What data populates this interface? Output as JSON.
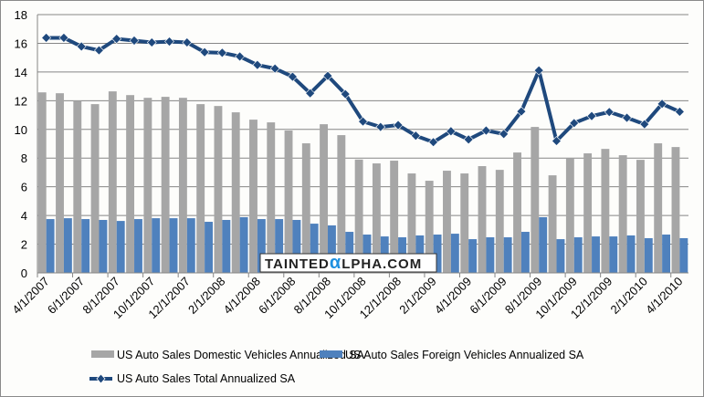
{
  "chart_data": {
    "type": "bar",
    "title": "",
    "xlabel": "",
    "ylabel": "",
    "ylim": [
      0,
      18
    ],
    "yticks": [
      0,
      2,
      4,
      6,
      8,
      10,
      12,
      14,
      16,
      18
    ],
    "grid": true,
    "legend_position": "bottom",
    "categories": [
      "4/1/2007",
      "5/1/2007",
      "6/1/2007",
      "7/1/2007",
      "8/1/2007",
      "9/1/2007",
      "10/1/2007",
      "11/1/2007",
      "12/1/2007",
      "1/1/2008",
      "2/1/2008",
      "3/1/2008",
      "4/1/2008",
      "5/1/2008",
      "6/1/2008",
      "7/1/2008",
      "8/1/2008",
      "9/1/2008",
      "10/1/2008",
      "11/1/2008",
      "12/1/2008",
      "1/1/2009",
      "2/1/2009",
      "3/1/2009",
      "4/1/2009",
      "5/1/2009",
      "6/1/2009",
      "7/1/2009",
      "8/1/2009",
      "9/1/2009",
      "10/1/2009",
      "11/1/2009",
      "12/1/2009",
      "1/1/2010",
      "2/1/2010",
      "3/1/2010",
      "4/1/2010"
    ],
    "x_tick_labels": [
      "4/1/2007",
      "6/1/2007",
      "8/1/2007",
      "10/1/2007",
      "12/1/2007",
      "2/1/2008",
      "4/1/2008",
      "6/1/2008",
      "8/1/2008",
      "10/1/2008",
      "12/1/2008",
      "2/1/2009",
      "4/1/2009",
      "6/1/2009",
      "8/1/2009",
      "10/1/2009",
      "12/1/2009",
      "2/1/2010",
      "4/1/2010"
    ],
    "series": [
      {
        "name": "US Auto Sales Domestic Vehicles Annualized SA",
        "type": "bar",
        "color": "#a6a6a6",
        "values": [
          12.58,
          12.52,
          12.0,
          11.76,
          12.65,
          12.39,
          12.2,
          12.27,
          12.2,
          11.76,
          11.63,
          11.19,
          10.68,
          10.49,
          9.92,
          9.03,
          10.36,
          9.6,
          7.9,
          7.63,
          7.82,
          6.93,
          6.42,
          7.12,
          6.93,
          7.44,
          7.18,
          8.39,
          10.17,
          6.8,
          8.0,
          8.33,
          8.64,
          8.2,
          7.88,
          9.03,
          8.77
        ]
      },
      {
        "name": "US Auto Sales Foreign Vehicles Annualized SA",
        "type": "bar",
        "color": "#4f81bd",
        "values": [
          3.75,
          3.81,
          3.75,
          3.69,
          3.62,
          3.75,
          3.81,
          3.81,
          3.81,
          3.56,
          3.69,
          3.88,
          3.75,
          3.75,
          3.69,
          3.43,
          3.31,
          2.86,
          2.67,
          2.54,
          2.48,
          2.61,
          2.67,
          2.73,
          2.35,
          2.48,
          2.48,
          2.86,
          3.88,
          2.35,
          2.48,
          2.54,
          2.54,
          2.61,
          2.42,
          2.67,
          2.42
        ]
      },
      {
        "name": "US Auto Sales Total  Annualized SA",
        "type": "line",
        "color": "#1f497d",
        "values": [
          16.38,
          16.38,
          15.78,
          15.51,
          16.31,
          16.19,
          16.06,
          16.12,
          16.06,
          15.38,
          15.34,
          15.08,
          14.49,
          14.24,
          13.67,
          12.52,
          13.73,
          12.46,
          10.55,
          10.17,
          10.3,
          9.56,
          9.11,
          9.87,
          9.3,
          9.92,
          9.68,
          11.25,
          14.11,
          9.19,
          10.44,
          10.93,
          11.21,
          10.81,
          10.36,
          11.78,
          11.23
        ]
      }
    ]
  },
  "watermark": {
    "pre": "TAINTED",
    "alpha": "α",
    "post": "LPHA.COM"
  }
}
